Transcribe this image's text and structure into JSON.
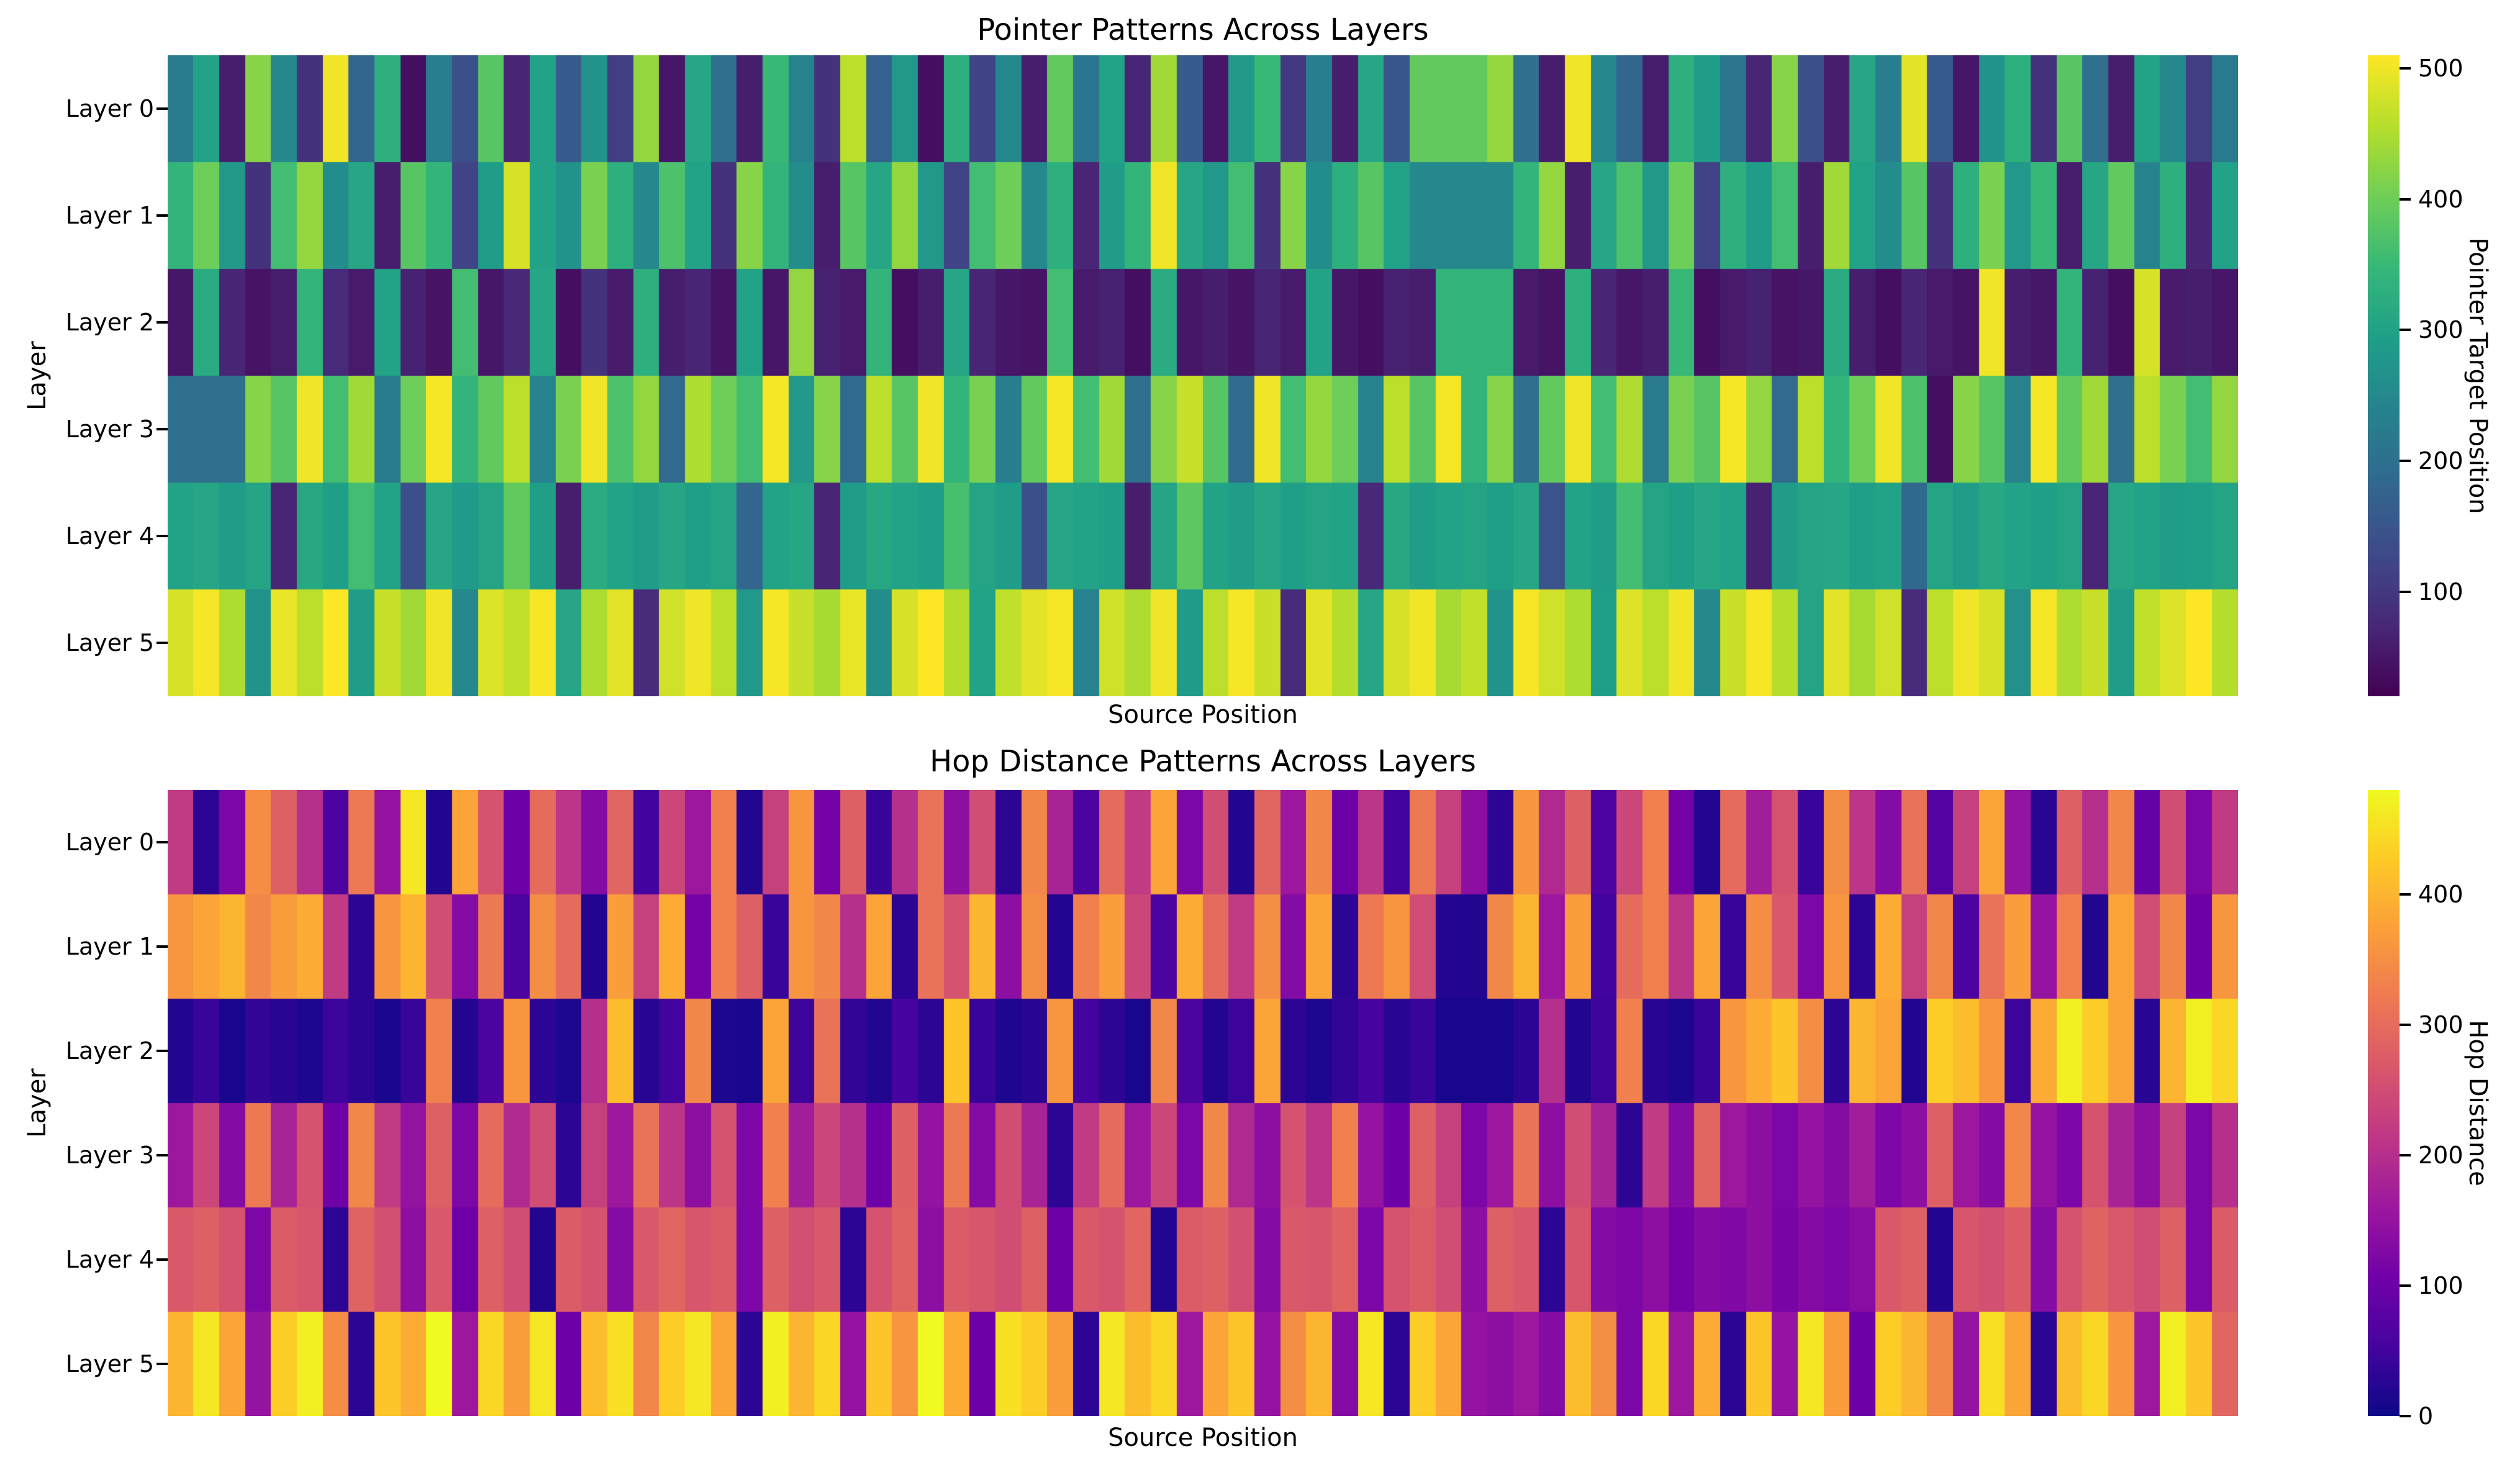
{
  "figure": {
    "background": "#ffffff",
    "text_color": "#000000"
  },
  "chart_data": [
    {
      "type": "heatmap",
      "title": "Pointer Patterns Across Layers",
      "xlabel": "Source Position",
      "ylabel": "Layer",
      "row_labels": [
        "Layer 0",
        "Layer 1",
        "Layer 2",
        "Layer 3",
        "Layer 4",
        "Layer 5"
      ],
      "colormap": "viridis",
      "vmin": 20,
      "vmax": 510,
      "x_axis": "source positions 0-511 (no numeric ticks shown)",
      "colorbar": {
        "label": "Pointer Target Position",
        "ticks": [
          100,
          200,
          300,
          400,
          500
        ]
      },
      "values": [
        [
          220,
          300,
          60,
          420,
          250,
          90,
          500,
          180,
          330,
          40,
          230,
          140,
          380,
          70,
          300,
          160,
          270,
          110,
          430,
          50,
          310,
          200,
          60,
          350,
          240,
          90,
          460,
          170,
          280,
          40,
          330,
          120,
          250,
          60,
          390,
          210,
          300,
          70,
          440,
          160,
          50,
          280,
          350,
          100,
          230,
          60,
          310,
          150,
          390,
          390,
          390,
          430,
          200,
          60,
          500,
          250,
          180,
          60,
          330,
          290,
          210,
          70,
          420,
          140,
          60,
          310,
          230,
          490,
          160,
          50,
          270,
          330,
          90,
          380,
          200,
          60,
          300,
          250,
          110,
          220
        ],
        [
          340,
          400,
          280,
          90,
          360,
          430,
          260,
          310,
          60,
          380,
          340,
          120,
          290,
          480,
          300,
          270,
          410,
          330,
          250,
          370,
          300,
          90,
          420,
          340,
          260,
          60,
          380,
          310,
          430,
          280,
          120,
          360,
          400,
          250,
          330,
          70,
          290,
          340,
          500,
          310,
          280,
          360,
          90,
          420,
          260,
          330,
          380,
          300,
          250,
          250,
          250,
          250,
          340,
          430,
          60,
          310,
          370,
          280,
          400,
          120,
          330,
          290,
          360,
          60,
          440,
          300,
          260,
          380,
          90,
          330,
          410,
          280,
          350,
          60,
          310,
          390,
          240,
          330,
          70,
          300
        ],
        [
          50,
          320,
          70,
          45,
          60,
          340,
          80,
          55,
          300,
          65,
          45,
          360,
          50,
          75,
          310,
          40,
          90,
          55,
          330,
          60,
          70,
          45,
          300,
          50,
          430,
          65,
          55,
          340,
          40,
          60,
          310,
          70,
          50,
          45,
          360,
          55,
          65,
          40,
          320,
          50,
          60,
          45,
          70,
          55,
          300,
          50,
          40,
          65,
          60,
          340,
          340,
          340,
          55,
          45,
          330,
          70,
          50,
          60,
          350,
          40,
          55,
          65,
          45,
          50,
          320,
          60,
          40,
          70,
          55,
          45,
          500,
          60,
          50,
          340,
          65,
          40,
          480,
          55,
          60,
          50
        ],
        [
          200,
          200,
          200,
          420,
          380,
          500,
          360,
          440,
          220,
          400,
          505,
          340,
          390,
          460,
          240,
          410,
          500,
          370,
          430,
          190,
          450,
          400,
          360,
          505,
          280,
          420,
          190,
          460,
          380,
          500,
          340,
          410,
          230,
          390,
          505,
          360,
          440,
          200,
          420,
          470,
          380,
          190,
          500,
          360,
          430,
          400,
          240,
          460,
          380,
          505,
          340,
          420,
          200,
          390,
          500,
          360,
          450,
          220,
          410,
          380,
          505,
          430,
          190,
          460,
          340,
          400,
          500,
          370,
          40,
          420,
          380,
          240,
          505,
          390,
          440,
          200,
          460,
          410,
          360,
          430
        ],
        [
          300,
          310,
          290,
          305,
          70,
          315,
          295,
          360,
          300,
          140,
          310,
          285,
          305,
          390,
          295,
          60,
          320,
          300,
          290,
          310,
          295,
          305,
          180,
          300,
          310,
          70,
          290,
          315,
          300,
          295,
          365,
          305,
          290,
          140,
          310,
          300,
          295,
          60,
          305,
          385,
          300,
          290,
          310,
          295,
          305,
          300,
          75,
          315,
          290,
          300,
          305,
          295,
          310,
          145,
          300,
          290,
          360,
          305,
          295,
          310,
          300,
          65,
          290,
          305,
          310,
          295,
          300,
          185,
          305,
          290,
          315,
          300,
          295,
          305,
          70,
          310,
          300,
          290,
          295,
          305
        ],
        [
          480,
          505,
          450,
          270,
          495,
          460,
          510,
          290,
          470,
          440,
          500,
          250,
          485,
          465,
          505,
          310,
          450,
          490,
          80,
          475,
          500,
          460,
          280,
          505,
          470,
          445,
          495,
          260,
          480,
          510,
          455,
          300,
          465,
          490,
          505,
          240,
          475,
          450,
          500,
          285,
          460,
          505,
          470,
          80,
          490,
          455,
          310,
          480,
          500,
          445,
          465,
          270,
          505,
          475,
          450,
          295,
          485,
          460,
          500,
          250,
          470,
          505,
          455,
          305,
          490,
          445,
          475,
          80,
          460,
          500,
          480,
          265,
          505,
          450,
          470,
          290,
          465,
          485,
          510,
          455
        ]
      ]
    },
    {
      "type": "heatmap",
      "title": "Hop Distance Patterns Across Layers",
      "xlabel": "Source Position",
      "ylabel": "Layer",
      "row_labels": [
        "Layer 0",
        "Layer 1",
        "Layer 2",
        "Layer 3",
        "Layer 4",
        "Layer 5"
      ],
      "colormap": "plasma",
      "vmin": 0,
      "vmax": 480,
      "x_axis": "source positions 0-511 (no numeric ticks shown)",
      "colorbar": {
        "label": "Hop Distance",
        "ticks": [
          0,
          100,
          200,
          300,
          400
        ]
      },
      "values": [
        [
          220,
          30,
          120,
          350,
          280,
          200,
          60,
          320,
          150,
          460,
          20,
          380,
          260,
          100,
          300,
          210,
          130,
          290,
          50,
          240,
          160,
          330,
          20,
          230,
          360,
          110,
          280,
          40,
          200,
          310,
          140,
          250,
          30,
          340,
          180,
          60,
          300,
          220,
          380,
          120,
          250,
          20,
          290,
          160,
          340,
          100,
          210,
          50,
          320,
          230,
          140,
          30,
          360,
          190,
          280,
          60,
          240,
          330,
          110,
          20,
          300,
          170,
          260,
          40,
          350,
          210,
          130,
          310,
          70,
          230,
          380,
          150,
          25,
          280,
          200,
          340,
          90,
          250,
          120,
          220
        ],
        [
          360,
          380,
          400,
          340,
          370,
          390,
          220,
          30,
          360,
          400,
          250,
          130,
          320,
          60,
          350,
          300,
          20,
          370,
          230,
          390,
          110,
          330,
          280,
          40,
          360,
          340,
          200,
          380,
          30,
          310,
          260,
          400,
          140,
          350,
          20,
          330,
          370,
          240,
          60,
          390,
          300,
          220,
          350,
          130,
          380,
          30,
          320,
          360,
          250,
          20,
          20,
          340,
          400,
          160,
          370,
          50,
          300,
          330,
          210,
          380,
          40,
          350,
          270,
          120,
          360,
          30,
          390,
          230,
          340,
          60,
          310,
          370,
          150,
          330,
          20,
          380,
          250,
          340,
          100,
          360
        ],
        [
          20,
          40,
          10,
          35,
          25,
          15,
          45,
          30,
          10,
          40,
          330,
          20,
          60,
          360,
          30,
          15,
          200,
          410,
          25,
          50,
          340,
          15,
          10,
          380,
          45,
          310,
          35,
          20,
          55,
          30,
          420,
          40,
          15,
          25,
          360,
          50,
          30,
          10,
          340,
          60,
          20,
          45,
          380,
          30,
          15,
          35,
          55,
          25,
          40,
          10,
          10,
          10,
          30,
          200,
          20,
          45,
          330,
          25,
          15,
          40,
          360,
          390,
          420,
          350,
          30,
          400,
          380,
          20,
          430,
          410,
          360,
          45,
          390,
          470,
          430,
          380,
          25,
          400,
          470,
          440
        ],
        [
          160,
          240,
          130,
          320,
          180,
          260,
          100,
          340,
          220,
          150,
          280,
          120,
          300,
          190,
          250,
          30,
          230,
          160,
          310,
          210,
          140,
          260,
          120,
          330,
          170,
          240,
          200,
          100,
          280,
          150,
          320,
          130,
          250,
          180,
          30,
          220,
          300,
          160,
          240,
          120,
          340,
          190,
          140,
          260,
          210,
          330,
          150,
          100,
          280,
          230,
          120,
          160,
          310,
          140,
          250,
          180,
          30,
          220,
          130,
          290,
          160,
          140,
          120,
          150,
          130,
          170,
          120,
          140,
          280,
          160,
          130,
          340,
          150,
          120,
          260,
          180,
          140,
          230,
          120,
          200
        ],
        [
          270,
          280,
          260,
          120,
          275,
          265,
          30,
          285,
          255,
          140,
          270,
          100,
          280,
          250,
          20,
          275,
          260,
          130,
          270,
          290,
          265,
          275,
          120,
          280,
          255,
          270,
          30,
          260,
          285,
          140,
          275,
          265,
          250,
          280,
          100,
          270,
          260,
          290,
          20,
          275,
          280,
          255,
          130,
          270,
          265,
          285,
          120,
          260,
          275,
          250,
          140,
          280,
          270,
          30,
          265,
          130,
          120,
          140,
          110,
          130,
          125,
          140,
          115,
          130,
          120,
          135,
          270,
          280,
          20,
          265,
          255,
          275,
          130,
          260,
          285,
          270,
          250,
          280,
          120,
          275
        ],
        [
          400,
          460,
          380,
          150,
          430,
          470,
          350,
          30,
          420,
          390,
          480,
          160,
          440,
          370,
          460,
          100,
          410,
          450,
          340,
          430,
          460,
          380,
          30,
          470,
          400,
          440,
          150,
          420,
          360,
          480,
          390,
          100,
          450,
          430,
          370,
          30,
          460,
          410,
          440,
          160,
          380,
          420,
          150,
          350,
          400,
          130,
          460,
          30,
          430,
          380,
          150,
          140,
          160,
          130,
          410,
          350,
          120,
          440,
          160,
          390,
          30,
          420,
          150,
          460,
          370,
          100,
          430,
          400,
          340,
          150,
          450,
          380,
          30,
          410,
          440,
          360,
          160,
          470,
          420,
          290
        ]
      ]
    }
  ],
  "colormaps": {
    "viridis": [
      "#440154",
      "#482878",
      "#3e4a89",
      "#31688e",
      "#26828e",
      "#1f9e89",
      "#35b779",
      "#6ece58",
      "#b5de2b",
      "#fde725"
    ],
    "plasma": [
      "#0d0887",
      "#46039f",
      "#7201a8",
      "#9c179e",
      "#bd3786",
      "#d8576b",
      "#ed7953",
      "#fb9f3a",
      "#fdca26",
      "#f0f921"
    ]
  }
}
